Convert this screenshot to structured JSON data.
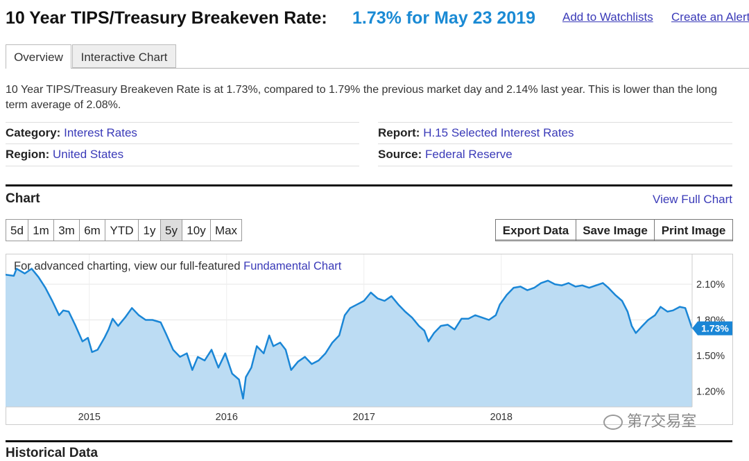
{
  "header": {
    "title": "10 Year TIPS/Treasury Breakeven Rate:",
    "current": "1.73% for May 23 2019",
    "links": [
      "Add to Watchlists",
      "Create an Alert"
    ]
  },
  "tabs": [
    "Overview",
    "Interactive Chart"
  ],
  "description": "10 Year TIPS/Treasury Breakeven Rate is at 1.73%, compared to 1.79% the previous market day and 2.14% last year. This is lower than the long term average of 2.08%.",
  "meta": [
    {
      "label": "Category:",
      "value": "Interest Rates"
    },
    {
      "label": "Report:",
      "value": "H.15 Selected Interest Rates"
    },
    {
      "label": "Region:",
      "value": "United States"
    },
    {
      "label": "Source:",
      "value": "Federal Reserve"
    }
  ],
  "chart_section": {
    "title": "Chart",
    "view_full": "View Full Chart",
    "ranges": [
      "5d",
      "1m",
      "3m",
      "6m",
      "YTD",
      "1y",
      "5y",
      "10y",
      "Max"
    ],
    "active_range": "5y",
    "actions": [
      "Export Data",
      "Save Image",
      "Print Image"
    ],
    "notice": "For advanced charting, view our full-featured",
    "notice_link": "Fundamental Chart"
  },
  "chart_data": {
    "type": "line",
    "color": "#1a86d6",
    "fill_color": "#bcdcf3",
    "x": [
      2014.39,
      2014.45,
      2014.47,
      2014.53,
      2014.58,
      2014.63,
      2014.68,
      2014.73,
      2014.78,
      2014.81,
      2014.85,
      2014.9,
      2014.95,
      2014.99,
      2015.02,
      2015.06,
      2015.11,
      2015.14,
      2015.17,
      2015.21,
      2015.26,
      2015.31,
      2015.36,
      2015.41,
      2015.46,
      2015.52,
      2015.56,
      2015.61,
      2015.66,
      2015.71,
      2015.75,
      2015.79,
      2015.84,
      2015.89,
      2015.94,
      2015.99,
      2016.04,
      2016.09,
      2016.12,
      2016.14,
      2016.18,
      2016.22,
      2016.27,
      2016.31,
      2016.34,
      2016.39,
      2016.43,
      2016.47,
      2016.52,
      2016.57,
      2016.62,
      2016.67,
      2016.72,
      2016.77,
      2016.82,
      2016.86,
      2016.9,
      2016.95,
      2017.0,
      2017.05,
      2017.1,
      2017.15,
      2017.2,
      2017.25,
      2017.3,
      2017.35,
      2017.4,
      2017.44,
      2017.47,
      2017.51,
      2017.56,
      2017.61,
      2017.66,
      2017.71,
      2017.76,
      2017.81,
      2017.86,
      2017.91,
      2017.96,
      2017.99,
      2018.04,
      2018.09,
      2018.14,
      2018.19,
      2018.24,
      2018.29,
      2018.34,
      2018.39,
      2018.44,
      2018.49,
      2018.54,
      2018.59,
      2018.64,
      2018.69,
      2018.74,
      2018.78,
      2018.83,
      2018.88,
      2018.92,
      2018.95,
      2018.98,
      2019.02,
      2019.07,
      2019.12,
      2019.16,
      2019.21,
      2019.25,
      2019.3,
      2019.34,
      2019.39
    ],
    "values": [
      2.18,
      2.17,
      2.23,
      2.19,
      2.23,
      2.16,
      2.07,
      1.96,
      1.84,
      1.88,
      1.87,
      1.75,
      1.62,
      1.65,
      1.53,
      1.55,
      1.65,
      1.72,
      1.81,
      1.75,
      1.82,
      1.9,
      1.84,
      1.8,
      1.8,
      1.78,
      1.68,
      1.55,
      1.49,
      1.52,
      1.38,
      1.49,
      1.46,
      1.55,
      1.4,
      1.52,
      1.35,
      1.3,
      1.14,
      1.32,
      1.4,
      1.58,
      1.52,
      1.67,
      1.58,
      1.61,
      1.55,
      1.38,
      1.45,
      1.49,
      1.43,
      1.46,
      1.52,
      1.61,
      1.67,
      1.84,
      1.9,
      1.93,
      1.96,
      2.03,
      1.98,
      1.96,
      2.0,
      1.93,
      1.87,
      1.82,
      1.75,
      1.71,
      1.62,
      1.69,
      1.75,
      1.76,
      1.72,
      1.81,
      1.81,
      1.84,
      1.82,
      1.8,
      1.84,
      1.93,
      2.01,
      2.07,
      2.08,
      2.05,
      2.07,
      2.11,
      2.13,
      2.1,
      2.09,
      2.11,
      2.08,
      2.09,
      2.07,
      2.09,
      2.11,
      2.07,
      2.01,
      1.96,
      1.87,
      1.75,
      1.69,
      1.74,
      1.8,
      1.84,
      1.91,
      1.87,
      1.88,
      1.91,
      1.9,
      1.73
    ],
    "xlim": [
      2014.39,
      2019.39
    ],
    "ylim": [
      1.07,
      2.35
    ],
    "xticks": [
      2015,
      2016,
      2017,
      2018
    ],
    "yticks": [
      {
        "value": 1.2,
        "label": "1.20%"
      },
      {
        "value": 1.5,
        "label": "1.50%"
      },
      {
        "value": 1.8,
        "label": "1.80%"
      },
      {
        "value": 2.1,
        "label": "2.10%"
      }
    ],
    "grid": true,
    "annotations": [
      {
        "x": 2019.39,
        "y": 1.73,
        "label": "1.73%"
      }
    ]
  },
  "next_section": "Historical Data",
  "watermark": "第7交易室"
}
